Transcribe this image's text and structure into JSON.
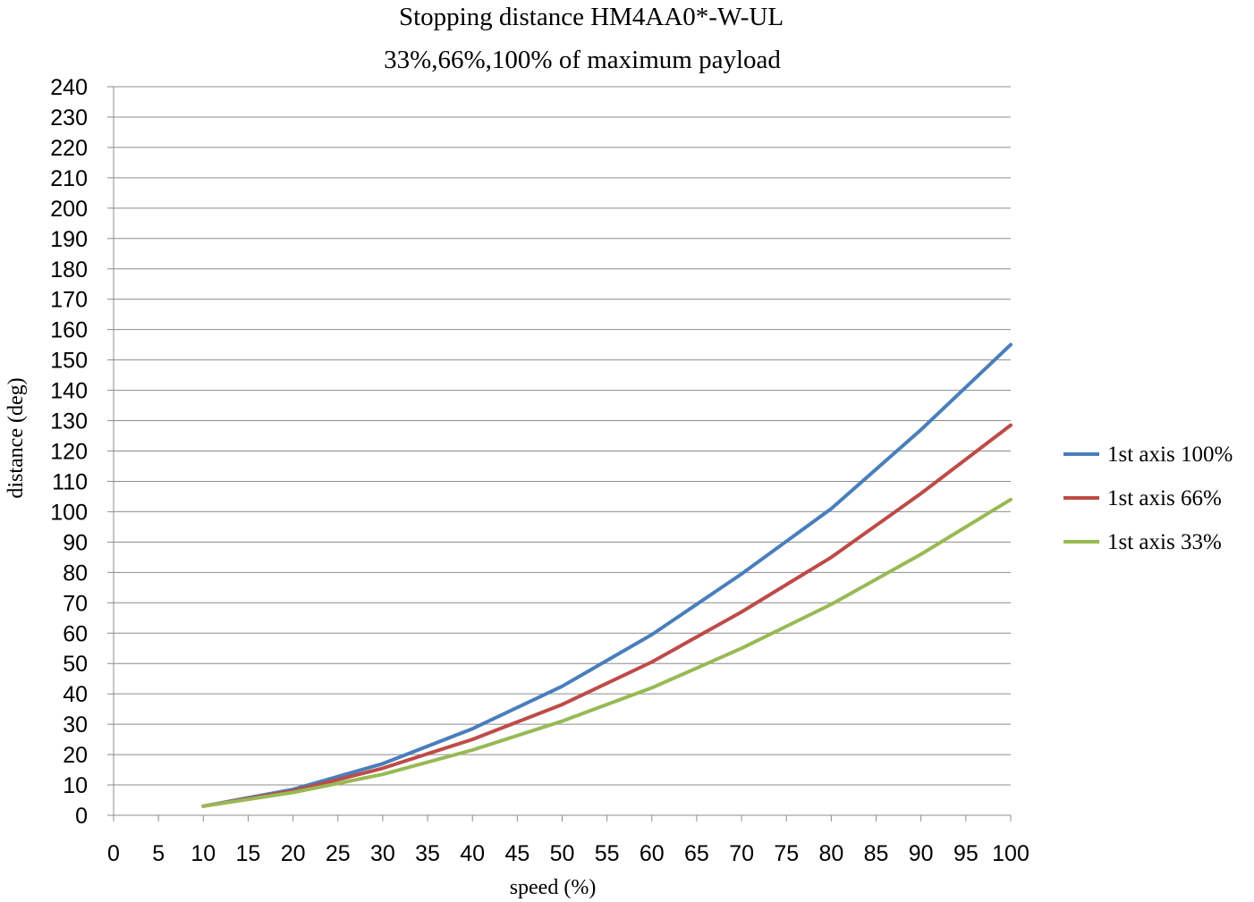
{
  "chart_data": {
    "type": "line",
    "title": "Stopping distance HM4AA0*-W-UL",
    "subtitle": "33%,66%,100% of maximum payload",
    "xlabel": "speed (%)",
    "ylabel": "distance (deg)",
    "xlim": [
      0,
      100
    ],
    "ylim": [
      0,
      240
    ],
    "x_ticks": [
      "0",
      "5",
      "10",
      "15",
      "20",
      "25",
      "30",
      "35",
      "40",
      "45",
      "50",
      "55",
      "60",
      "65",
      "70",
      "75",
      "80",
      "85",
      "90",
      "95",
      "100"
    ],
    "y_ticks": [
      "0",
      "10",
      "20",
      "30",
      "40",
      "50",
      "60",
      "70",
      "80",
      "90",
      "100",
      "110",
      "120",
      "130",
      "140",
      "150",
      "160",
      "170",
      "180",
      "190",
      "200",
      "210",
      "220",
      "230",
      "240"
    ],
    "grid": "horizontal",
    "legend_position": "right",
    "x": [
      10,
      20,
      30,
      40,
      50,
      60,
      70,
      80,
      90,
      100
    ],
    "series": [
      {
        "name": "1st axis 100%",
        "color": "#4a7ebb",
        "values": [
          3,
          8.5,
          17,
          28.5,
          42.5,
          59.5,
          79.5,
          101,
          127,
          155
        ]
      },
      {
        "name": "1st axis 66%",
        "color": "#be4b48",
        "values": [
          3,
          8,
          15.5,
          25,
          36.5,
          50.5,
          67,
          85,
          106,
          128.5
        ]
      },
      {
        "name": "1st axis 33%",
        "color": "#98b954",
        "values": [
          3,
          7.5,
          13.5,
          21.5,
          31,
          42,
          55,
          69.5,
          86,
          104
        ]
      }
    ]
  }
}
